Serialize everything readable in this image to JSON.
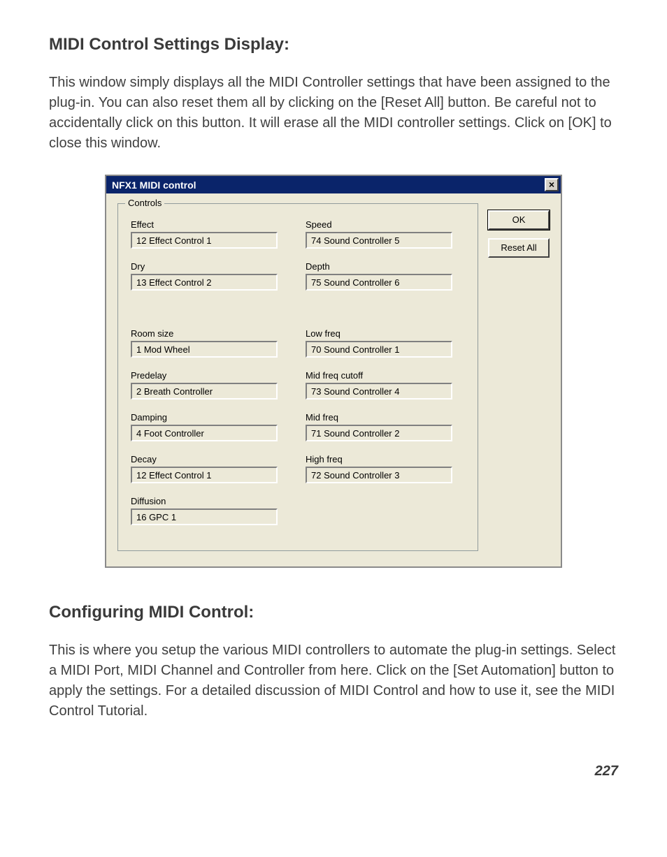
{
  "heading1": "MIDI Control Settings Display:",
  "para1": "This window simply displays all the MIDI Controller settings that have been assigned to the plug-in.  You can also reset them all by clicking on the [Reset All] button.\nBe careful not to accidentally click on this button.  It will erase all the MIDI controller settings.  Click on [OK] to close this window.",
  "dialog": {
    "title": "NFX1 MIDI control",
    "close_glyph": "×",
    "group_legend": "Controls",
    "ok_label": "OK",
    "reset_label": "Reset All",
    "left_col": [
      {
        "label": "Effect",
        "value": "12 Effect Control 1",
        "tall_gap": false
      },
      {
        "label": "Dry",
        "value": "13 Effect Control 2",
        "tall_gap": true
      },
      {
        "label": "Room size",
        "value": "1 Mod Wheel",
        "tall_gap": false
      },
      {
        "label": "Predelay",
        "value": "2 Breath Controller",
        "tall_gap": false
      },
      {
        "label": "Damping",
        "value": "4 Foot Controller",
        "tall_gap": false
      },
      {
        "label": "Decay",
        "value": "12 Effect Control 1",
        "tall_gap": false
      },
      {
        "label": "Diffusion",
        "value": "16 GPC 1",
        "tall_gap": false
      }
    ],
    "right_col": [
      {
        "label": "Speed",
        "value": "74 Sound Controller 5",
        "tall_gap": false
      },
      {
        "label": "Depth",
        "value": "75 Sound Controller 6",
        "tall_gap": true
      },
      {
        "label": "Low freq",
        "value": "70 Sound Controller 1",
        "tall_gap": false
      },
      {
        "label": "Mid freq cutoff",
        "value": "73 Sound Controller 4",
        "tall_gap": false
      },
      {
        "label": "Mid freq",
        "value": "71 Sound Controller 2",
        "tall_gap": false
      },
      {
        "label": "High freq",
        "value": "72 Sound Controller 3",
        "tall_gap": false
      }
    ]
  },
  "heading2": "Configuring MIDI Control:",
  "para2": "This is where you setup the various MIDI controllers to automate the plug-in settings.  Select a MIDI Port, MIDI Channel and Controller from here.  Click on the [Set Automation] button to apply the settings.  For a detailed discussion of MIDI Control and how to use it, see the MIDI Control Tutorial.",
  "page_number": "227"
}
